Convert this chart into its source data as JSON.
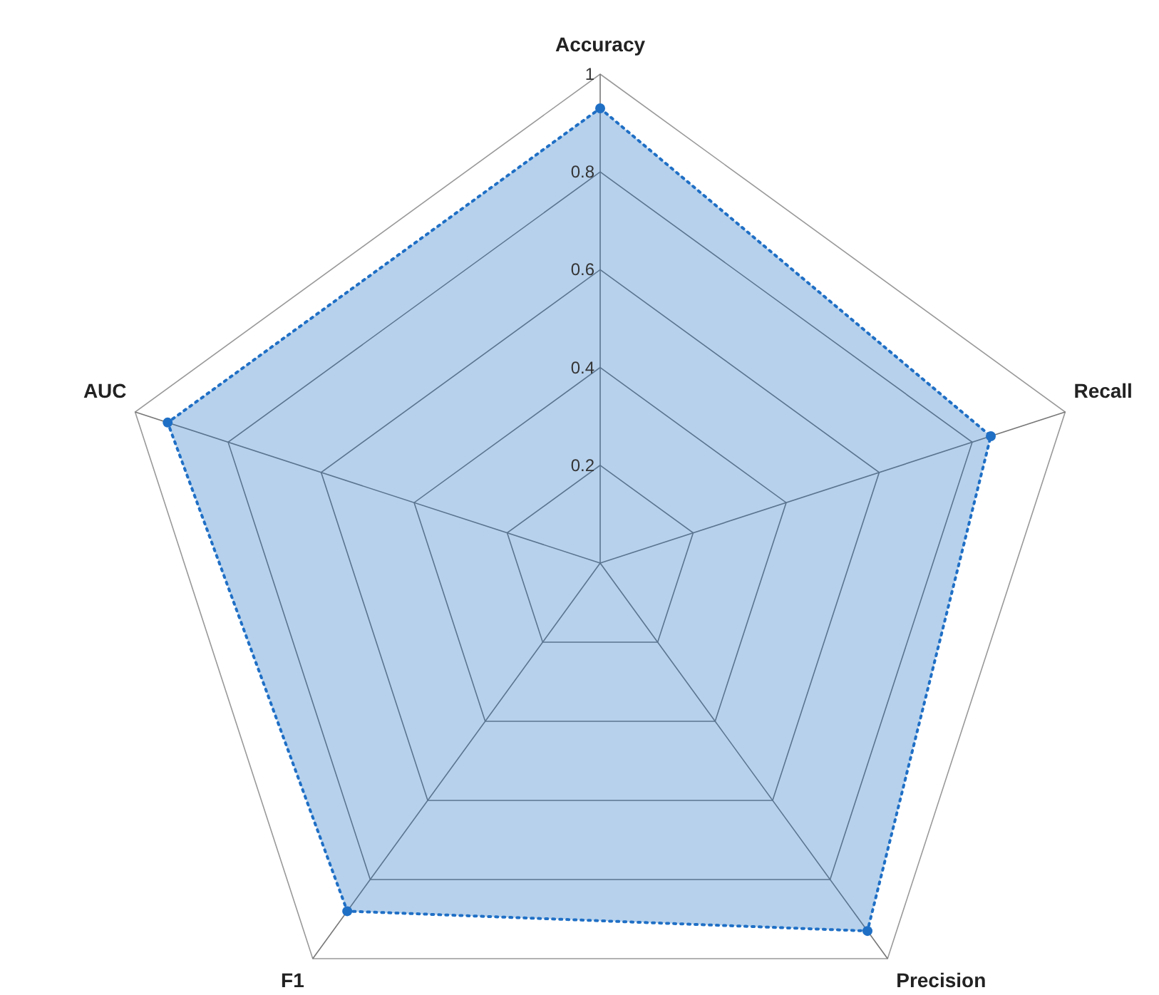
{
  "chart_data": {
    "type": "radar",
    "categories": [
      "Accuracy",
      "Recall",
      "Precision",
      "F1",
      "AUC"
    ],
    "series": [
      {
        "color": "#1f6fc5",
        "values": [
          0.93,
          0.84,
          0.93,
          0.88,
          0.93
        ]
      }
    ],
    "ylim": [
      0,
      1
    ],
    "yticks": [
      0.2,
      0.4,
      0.6,
      0.8,
      1
    ],
    "marker": "circle",
    "line_style": "dotted",
    "grid": true
  }
}
